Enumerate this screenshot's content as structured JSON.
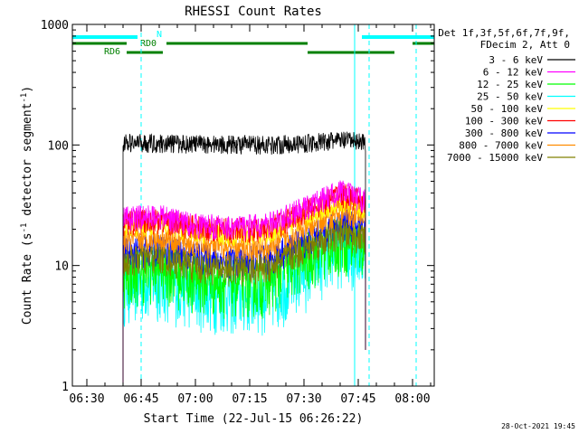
{
  "chart_data": {
    "type": "line",
    "title": "RHESSI Count Rates",
    "xlabel": "Start Time (22-Jul-15 06:26:22)",
    "ylabel_parts": [
      "Count Rate (s",
      "-1",
      " detector segment",
      "-1",
      ")"
    ],
    "y_scale": "log",
    "ylim": [
      1,
      1000
    ],
    "xlim": [
      "06:26",
      "08:06"
    ],
    "x_ticks": [
      {
        "t": "06:30",
        "label": "06:30"
      },
      {
        "t": "06:45",
        "label": "06:45"
      },
      {
        "t": "07:00",
        "label": "07:00"
      },
      {
        "t": "07:15",
        "label": "07:15"
      },
      {
        "t": "07:30",
        "label": "07:30"
      },
      {
        "t": "07:45",
        "label": "07:45"
      },
      {
        "t": "08:00",
        "label": "08:00"
      }
    ],
    "y_ticks": [
      {
        "v": 1,
        "label": "1"
      },
      {
        "v": 10,
        "label": "10"
      },
      {
        "v": 100,
        "label": "100"
      },
      {
        "v": 1000,
        "label": "1000"
      }
    ],
    "grid": false,
    "legend": {
      "position": "right",
      "header": [
        "Det 1f,3f,5f,6f,7f,9f,",
        "FDecim 2, Att 0"
      ]
    },
    "data_start": "06:40",
    "data_end": "07:47",
    "series": [
      {
        "name": "3 - 6 keV",
        "color": "#000000",
        "x": [
          "06:40",
          "06:50",
          "07:00",
          "07:10",
          "07:20",
          "07:30",
          "07:40",
          "07:47"
        ],
        "y": [
          105,
          104,
          103,
          102,
          101,
          104,
          110,
          108
        ]
      },
      {
        "name": "6 - 12 keV",
        "color": "#ff00ff",
        "x": [
          "06:40",
          "06:50",
          "07:00",
          "07:10",
          "07:20",
          "07:30",
          "07:40",
          "07:47"
        ],
        "y": [
          25,
          26,
          22,
          21,
          22,
          30,
          42,
          35
        ]
      },
      {
        "name": "12 - 25 keV",
        "color": "#00ff00",
        "x": [
          "06:40",
          "06:50",
          "07:00",
          "07:10",
          "07:20",
          "07:30",
          "07:40",
          "07:47"
        ],
        "y": [
          9,
          10,
          8,
          7.5,
          7.6,
          12,
          17,
          15
        ]
      },
      {
        "name": "25 - 50 keV",
        "color": "#00ffff",
        "x": [
          "06:40",
          "06:50",
          "07:00",
          "07:10",
          "07:20",
          "07:30",
          "07:40",
          "07:47"
        ],
        "y": [
          7,
          7.6,
          6.5,
          5.8,
          5.9,
          9,
          15,
          13
        ]
      },
      {
        "name": "50 - 100 keV",
        "color": "#ffff00",
        "x": [
          "06:40",
          "06:50",
          "07:00",
          "07:10",
          "07:20",
          "07:30",
          "07:40",
          "07:47"
        ],
        "y": [
          21,
          22,
          19,
          18,
          18.5,
          25,
          34,
          30
        ]
      },
      {
        "name": "100 - 300 keV",
        "color": "#ff0000",
        "x": [
          "06:40",
          "06:50",
          "07:00",
          "07:10",
          "07:20",
          "07:30",
          "07:40",
          "07:47"
        ],
        "y": [
          23,
          24,
          21,
          20,
          20,
          28,
          40,
          33
        ]
      },
      {
        "name": "300 - 800 keV",
        "color": "#0000ff",
        "x": [
          "06:40",
          "06:50",
          "07:00",
          "07:10",
          "07:20",
          "07:30",
          "07:40",
          "07:47"
        ],
        "y": [
          13,
          14,
          12,
          11,
          11.5,
          16,
          23,
          21
        ]
      },
      {
        "name": "800 - 7000 keV",
        "color": "#ff8c00",
        "x": [
          "06:40",
          "06:50",
          "07:00",
          "07:10",
          "07:20",
          "07:30",
          "07:40",
          "07:47"
        ],
        "y": [
          16,
          17,
          15,
          14,
          14,
          20,
          28,
          25
        ]
      },
      {
        "name": "7000 - 15000 keV",
        "color": "#808000",
        "x": [
          "06:40",
          "06:50",
          "07:00",
          "07:10",
          "07:20",
          "07:30",
          "07:40",
          "07:47"
        ],
        "y": [
          11,
          12,
          10,
          9.5,
          9.8,
          14,
          19,
          17
        ]
      }
    ],
    "noise": [
      {
        "pct": 0.12
      },
      {
        "pct": 0.16
      },
      {
        "pct": 0.35
      },
      {
        "pct": 0.38
      },
      {
        "pct": 0.13
      },
      {
        "pct": 0.16
      },
      {
        "pct": 0.2
      },
      {
        "pct": 0.15
      },
      {
        "pct": 0.2
      }
    ],
    "night_bars": [
      {
        "start": "06:26",
        "end": "06:44"
      },
      {
        "start": "07:46",
        "end": "08:06"
      }
    ],
    "saa_bars": [
      {
        "start": "06:26",
        "end": "06:41"
      },
      {
        "start": "06:52",
        "end": "07:31"
      },
      {
        "start": "08:00",
        "end": "08:06"
      }
    ],
    "rd_bars": [
      {
        "start": "06:41",
        "end": "06:51"
      },
      {
        "start": "07:31",
        "end": "07:55"
      }
    ],
    "bar_labels": [
      {
        "text": "N",
        "color": "#00ffff",
        "t": "06:50"
      },
      {
        "text": "RD0",
        "color": "#008000",
        "t": "06:47"
      },
      {
        "text": "RD6",
        "color": "#008000",
        "t": "06:37"
      }
    ],
    "vlines_solid": [
      "06:26",
      "07:44"
    ],
    "vlines_dashed": [
      "06:45",
      "07:48",
      "08:01"
    ],
    "timestamp": "28-Oct-2021 19:45"
  }
}
